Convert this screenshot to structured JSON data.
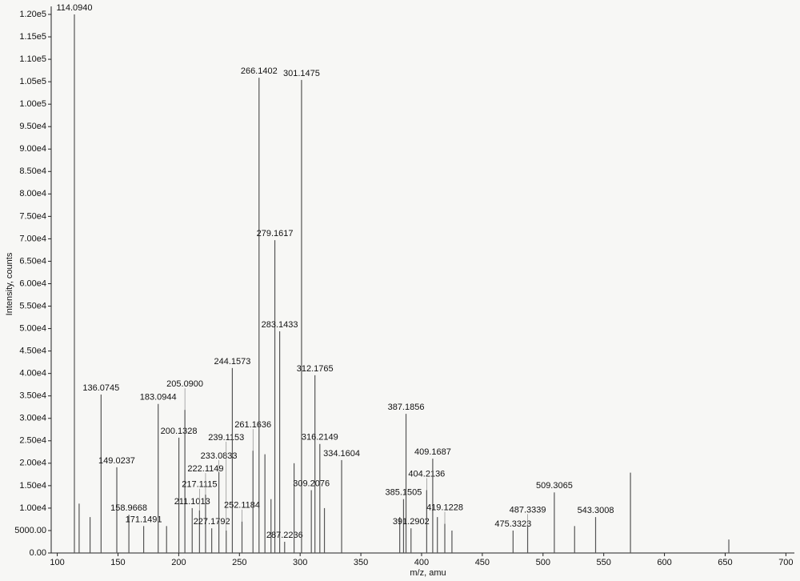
{
  "chart_data": {
    "type": "spectrum",
    "x_label": "m/z, amu",
    "y_label": "Intensity, counts",
    "color": "#555555",
    "xlim": [
      95,
      707
    ],
    "ylim": [
      0,
      120000
    ],
    "xticks": [
      100,
      150,
      200,
      250,
      300,
      350,
      400,
      450,
      500,
      550,
      600,
      650,
      700
    ],
    "yticks": [
      {
        "value": 0,
        "label": "0.00"
      },
      {
        "value": 5000,
        "label": "5000.00"
      },
      {
        "value": 10000,
        "label": "1.00e4"
      },
      {
        "value": 15000,
        "label": "1.50e4"
      },
      {
        "value": 20000,
        "label": "2.00e4"
      },
      {
        "value": 25000,
        "label": "2.50e4"
      },
      {
        "value": 30000,
        "label": "3.00e4"
      },
      {
        "value": 35000,
        "label": "3.50e4"
      },
      {
        "value": 40000,
        "label": "4.00e4"
      },
      {
        "value": 45000,
        "label": "4.50e4"
      },
      {
        "value": 50000,
        "label": "5.00e4"
      },
      {
        "value": 55000,
        "label": "5.50e4"
      },
      {
        "value": 60000,
        "label": "6.00e4"
      },
      {
        "value": 65000,
        "label": "6.50e4"
      },
      {
        "value": 70000,
        "label": "7.00e4"
      },
      {
        "value": 75000,
        "label": "7.50e4"
      },
      {
        "value": 80000,
        "label": "8.00e4"
      },
      {
        "value": 85000,
        "label": "8.50e4"
      },
      {
        "value": 90000,
        "label": "9.00e4"
      },
      {
        "value": 95000,
        "label": "9.50e4"
      },
      {
        "value": 100000,
        "label": "1.00e5"
      },
      {
        "value": 105000,
        "label": "1.05e5"
      },
      {
        "value": 110000,
        "label": "1.10e5"
      },
      {
        "value": 115000,
        "label": "1.15e5"
      },
      {
        "value": 120000,
        "label": "1.20e5"
      }
    ],
    "x": [
      114.094,
      118,
      127,
      136.0745,
      149.0237,
      158.9668,
      171.1491,
      183.0944,
      190,
      200.1328,
      205.09,
      211.1013,
      217.1115,
      222.1149,
      227.1792,
      233.0833,
      239.1153,
      244.1573,
      252.1184,
      261.1636,
      266.1402,
      271,
      276,
      279.1617,
      283.1433,
      287.2236,
      295,
      301.1475,
      309.2076,
      312.1765,
      316.2149,
      320,
      334.1604,
      382,
      385.1505,
      387.1856,
      391.2902,
      404.2136,
      409.1687,
      413,
      419.1228,
      425,
      475.3323,
      487.3339,
      509.3065,
      526,
      543.3008,
      572,
      653
    ],
    "x_labels": [
      "114.0940",
      null,
      null,
      "136.0745",
      "149.0237",
      "158.9668",
      "171.1491",
      "183.0944",
      null,
      "200.1328",
      "205.0900",
      "211.1013",
      "217.1115",
      "222.1149",
      "227.1792",
      "233.0833",
      "239.1153",
      "244.1573",
      "252.1184",
      "261.1636",
      "266.1402",
      null,
      null,
      "279.1617",
      "283.1433",
      "287.2236",
      null,
      "301.1475",
      "309.2076",
      "312.1765",
      "316.2149",
      null,
      "334.1604",
      null,
      "385.1505",
      "387.1856",
      "391.2902",
      "404.2136",
      "409.1687",
      null,
      "419.1228",
      null,
      "475.3323",
      "487.3339",
      "509.3065",
      null,
      "543.3008",
      null,
      null
    ],
    "values": [
      120000,
      11000,
      8000,
      35300,
      19100,
      8500,
      6000,
      33200,
      6000,
      25700,
      31900,
      10000,
      9500,
      13000,
      5500,
      18000,
      5000,
      41200,
      7000,
      22800,
      105900,
      22000,
      12000,
      69700,
      49400,
      2500,
      20000,
      105400,
      14000,
      39600,
      24300,
      10000,
      20700,
      8000,
      12000,
      31000,
      5500,
      14000,
      21000,
      8000,
      6500,
      5000,
      5000,
      6000,
      13500,
      6000,
      8000,
      17900,
      3000
    ]
  }
}
